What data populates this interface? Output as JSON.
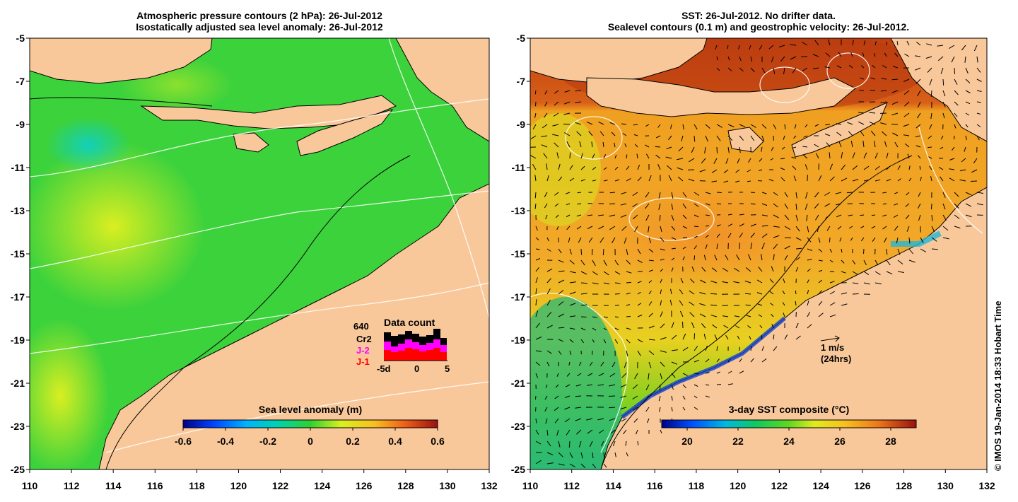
{
  "left_panel": {
    "title_line1": "Atmospheric pressure contours (2 hPa): 26-Jul-2012",
    "title_line2": "Isostatically adjusted sea level anomaly: 26-Jul-2012",
    "lon_ticks": [
      "110",
      "112",
      "114",
      "116",
      "118",
      "120",
      "122",
      "124",
      "126",
      "128",
      "130",
      "132"
    ],
    "lat_ticks": [
      "-5",
      "-7",
      "-9",
      "-11",
      "-13",
      "-15",
      "-17",
      "-19",
      "-21",
      "-23",
      "-25"
    ],
    "colorbar": {
      "title": "Sea level anomaly (m)",
      "range": [
        -0.6,
        0.6
      ],
      "ticks": [
        "-0.6",
        "-0.4",
        "-0.2",
        "0",
        "0.2",
        "0.4",
        "0.6"
      ]
    },
    "data_count": {
      "title": "Data count",
      "legend": [
        "640",
        "Cr2",
        "J-2",
        "J-1"
      ],
      "legend_colors": [
        "#000000",
        "#000000",
        "#ff00ff",
        "#ff0000"
      ],
      "x_ticks": [
        "-5d",
        "0",
        "5"
      ]
    }
  },
  "right_panel": {
    "title_line1": "SST: 26-Jul-2012. No drifter data.",
    "title_line2": "Sealevel contours (0.1 m) and geostrophic velocity: 26-Jul-2012.",
    "lon_ticks": [
      "110",
      "112",
      "114",
      "116",
      "118",
      "120",
      "122",
      "124",
      "126",
      "128",
      "130",
      "132"
    ],
    "lat_ticks": [
      "-5",
      "-7",
      "-9",
      "-11",
      "-13",
      "-15",
      "-17",
      "-19",
      "-21",
      "-23",
      "-25"
    ],
    "colorbar": {
      "title": "3-day SST composite (°C)",
      "range": [
        19,
        29
      ],
      "ticks": [
        "20",
        "22",
        "24",
        "26",
        "28"
      ]
    },
    "velocity_key": {
      "label": "1 m/s",
      "sublabel": "(24hrs)"
    }
  },
  "credit": "© IMOS 19-Jan-2014 18:33 Hobart Time",
  "colors": {
    "land": "#f9c89a",
    "ocean_green": "#3cd23c",
    "sst_orange": "#f0a020"
  }
}
